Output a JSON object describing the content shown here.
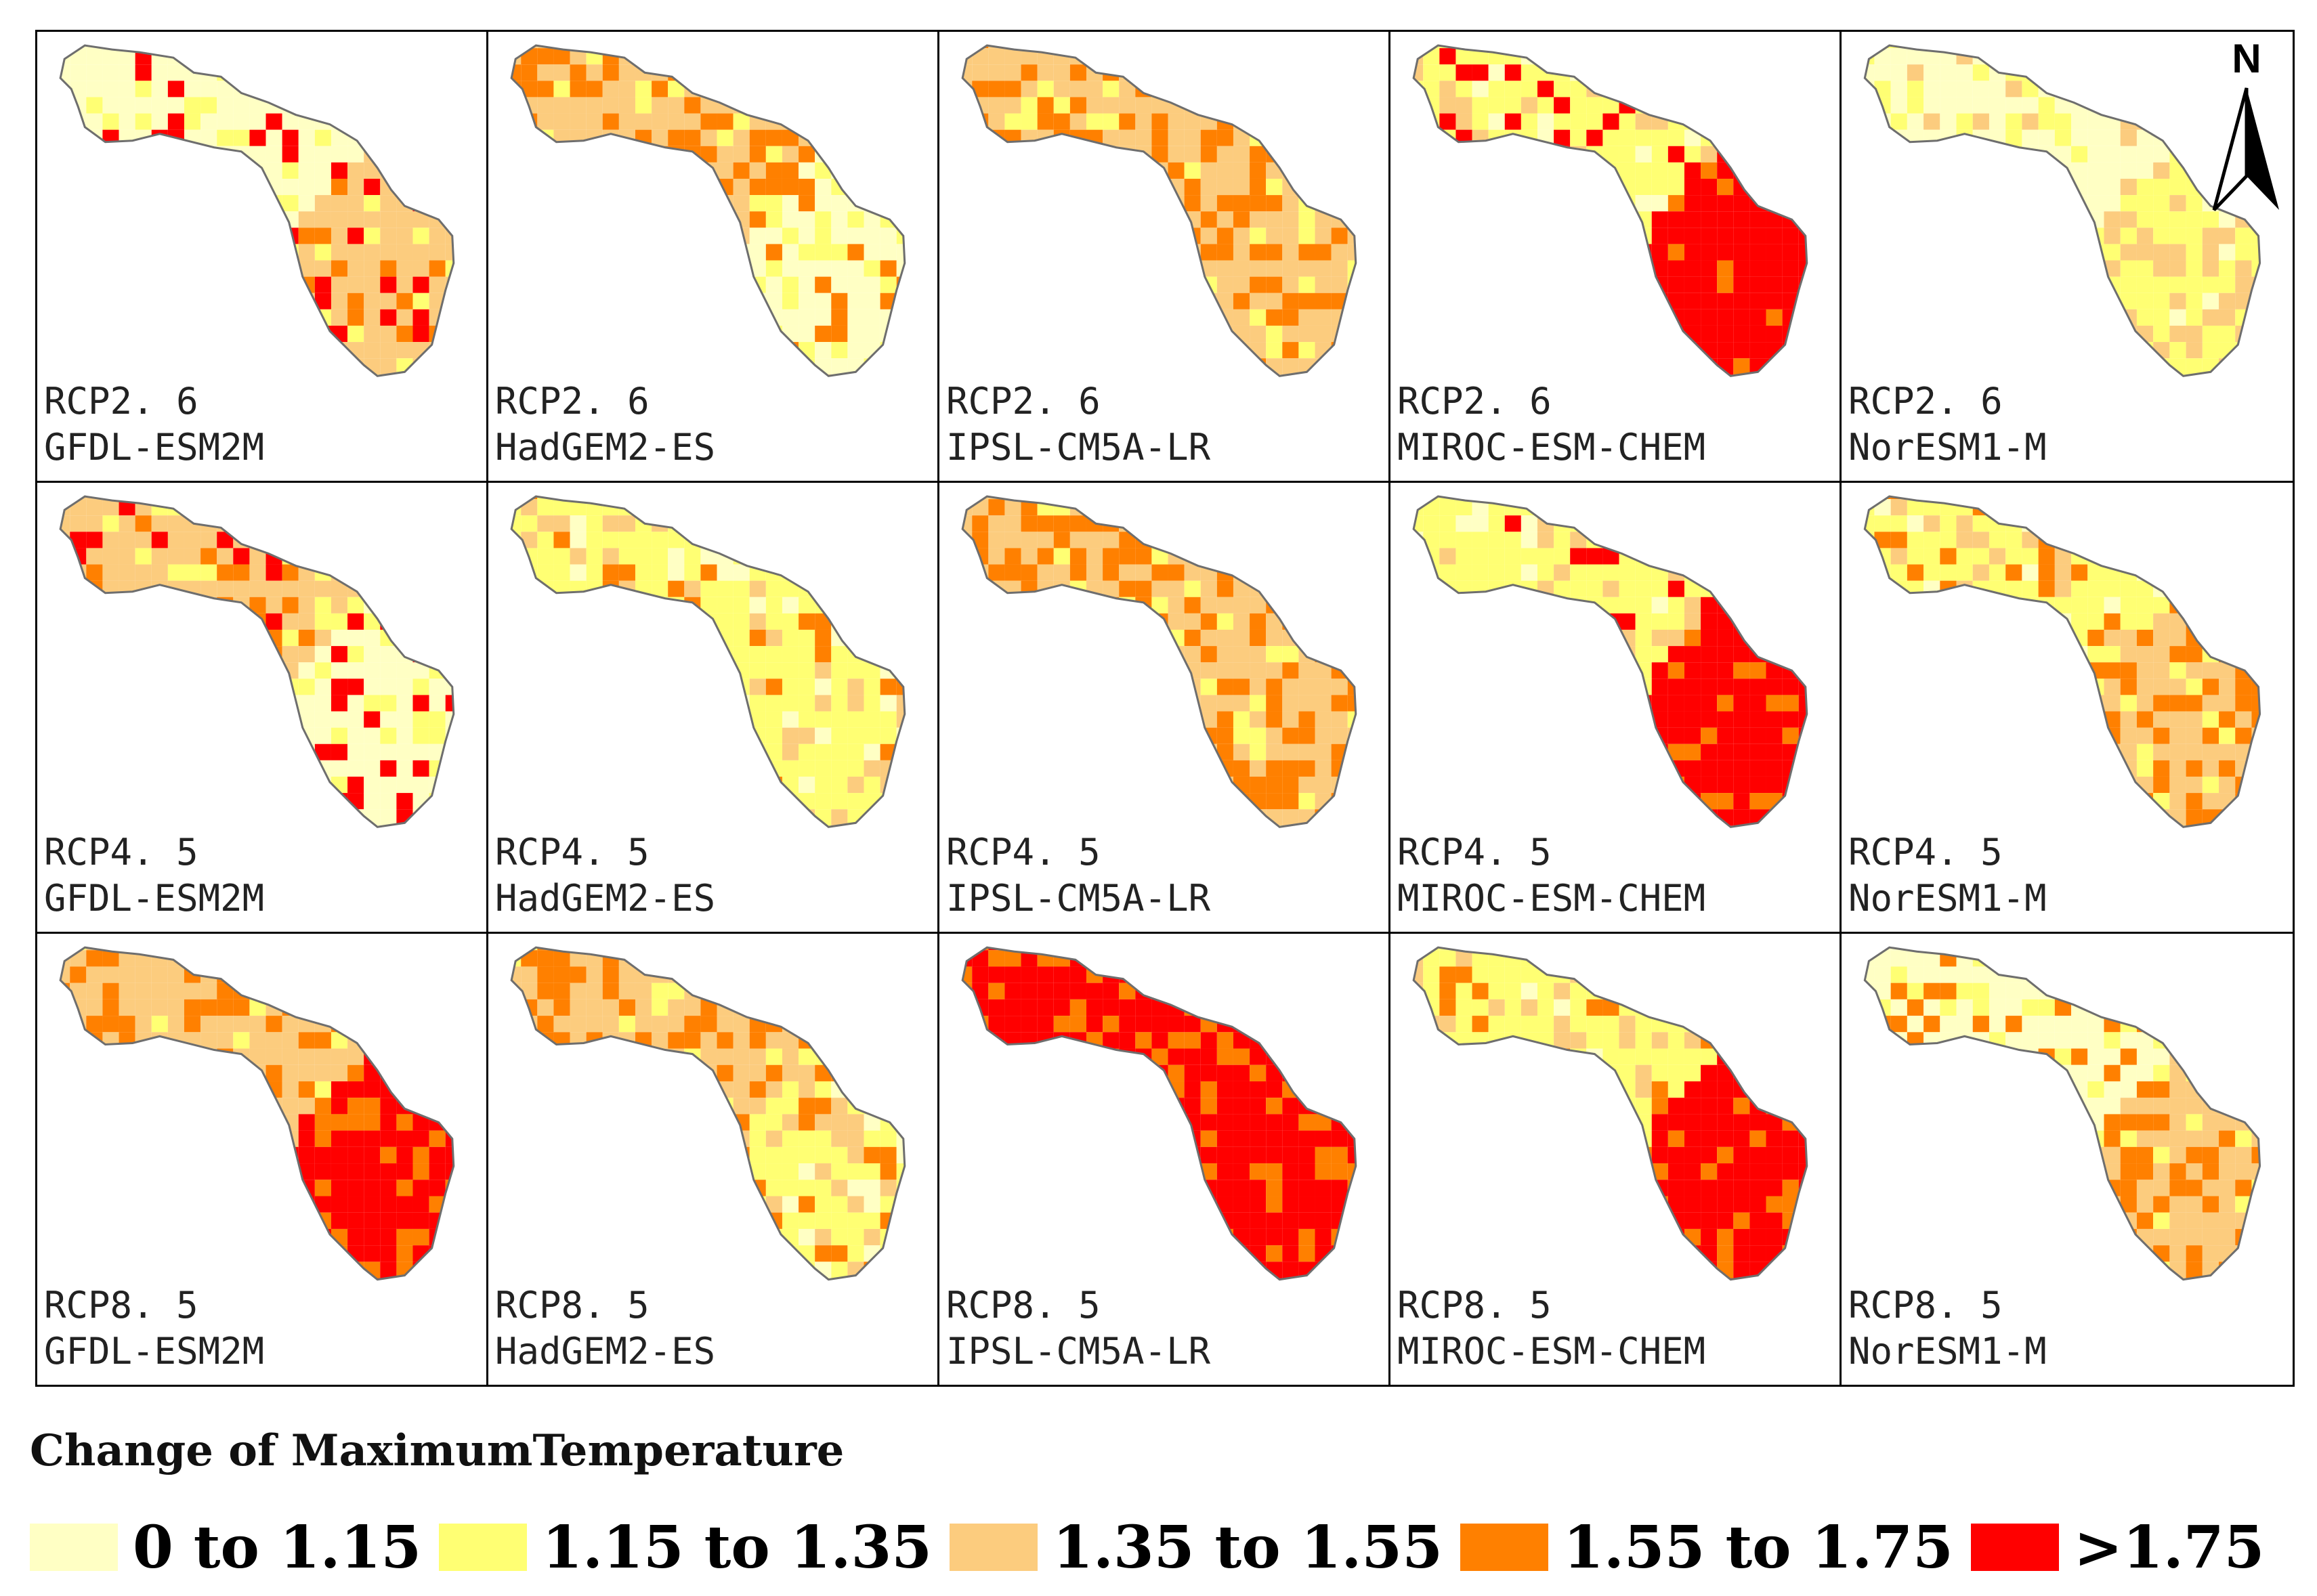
{
  "legend": {
    "title": "Change of MaximumTemperature",
    "classes": [
      {
        "label": "0 to 1.15",
        "color": "#FFFFC4"
      },
      {
        "label": "1.15 to 1.35",
        "color": "#FFFF73"
      },
      {
        "label": "1.35 to 1.55",
        "color": "#FCCC7E"
      },
      {
        "label": ">1.75",
        "color": "#FF0000"
      }
    ],
    "class4": {
      "label": "1.55 to 1.75",
      "color": "#FF8000"
    }
  },
  "north_arrow": {
    "label": "N"
  },
  "outline_color": "#6e6e6e",
  "panels": [
    {
      "scenario": "RCP2. 6",
      "model": "GFDL-ESM2M"
    },
    {
      "scenario": "RCP2. 6",
      "model": "HadGEM2-ES"
    },
    {
      "scenario": "RCP2. 6",
      "model": "IPSL-CM5A-LR"
    },
    {
      "scenario": "RCP2. 6",
      "model": "MIROC-ESM-CHEM"
    },
    {
      "scenario": "RCP2. 6",
      "model": "NorESM1-M"
    },
    {
      "scenario": "RCP4. 5",
      "model": "GFDL-ESM2M"
    },
    {
      "scenario": "RCP4. 5",
      "model": "HadGEM2-ES"
    },
    {
      "scenario": "RCP4. 5",
      "model": "IPSL-CM5A-LR"
    },
    {
      "scenario": "RCP4. 5",
      "model": "MIROC-ESM-CHEM"
    },
    {
      "scenario": "RCP4. 5",
      "model": "NorESM1-M"
    },
    {
      "scenario": "RCP8. 5",
      "model": "GFDL-ESM2M"
    },
    {
      "scenario": "RCP8. 5",
      "model": "HadGEM2-ES"
    },
    {
      "scenario": "RCP8. 5",
      "model": "IPSL-CM5A-LR"
    },
    {
      "scenario": "RCP8. 5",
      "model": "MIROC-ESM-CHEM"
    },
    {
      "scenario": "RCP8. 5",
      "model": "NorESM1-M"
    }
  ]
}
